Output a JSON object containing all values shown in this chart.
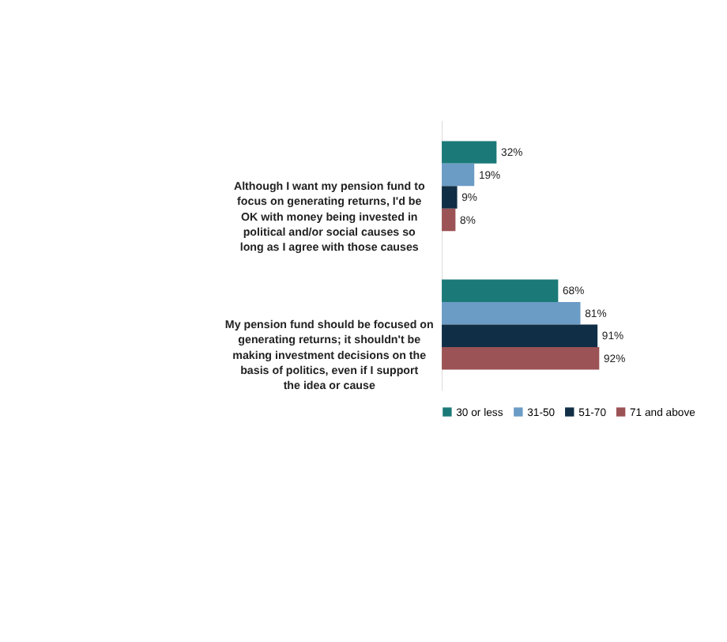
{
  "chart_data": {
    "type": "bar",
    "orientation": "horizontal",
    "categories": [
      "Although I want my pension fund to focus on generating returns, I'd be OK with money being invested in political and/or social causes so long as I agree with those causes",
      "My pension fund should be focused on generating returns; it shouldn't be making investment decisions on the basis of politics, even if I support the idea or cause"
    ],
    "series": [
      {
        "name": "30 or less",
        "color": "#1b7a78",
        "values": [
          32,
          68
        ],
        "value_labels": [
          "32%",
          "68%"
        ]
      },
      {
        "name": "31-50",
        "color": "#6b9cc6",
        "values": [
          19,
          81
        ],
        "value_labels": [
          "19%",
          "81%"
        ]
      },
      {
        "name": "51-70",
        "color": "#102e45",
        "values": [
          9,
          91
        ],
        "value_labels": [
          "9%",
          "91%"
        ]
      },
      {
        "name": "71 and above",
        "color": "#9b5356",
        "values": [
          8,
          92
        ],
        "value_labels": [
          "8%",
          "92%"
        ]
      }
    ],
    "legend": "bottom"
  }
}
